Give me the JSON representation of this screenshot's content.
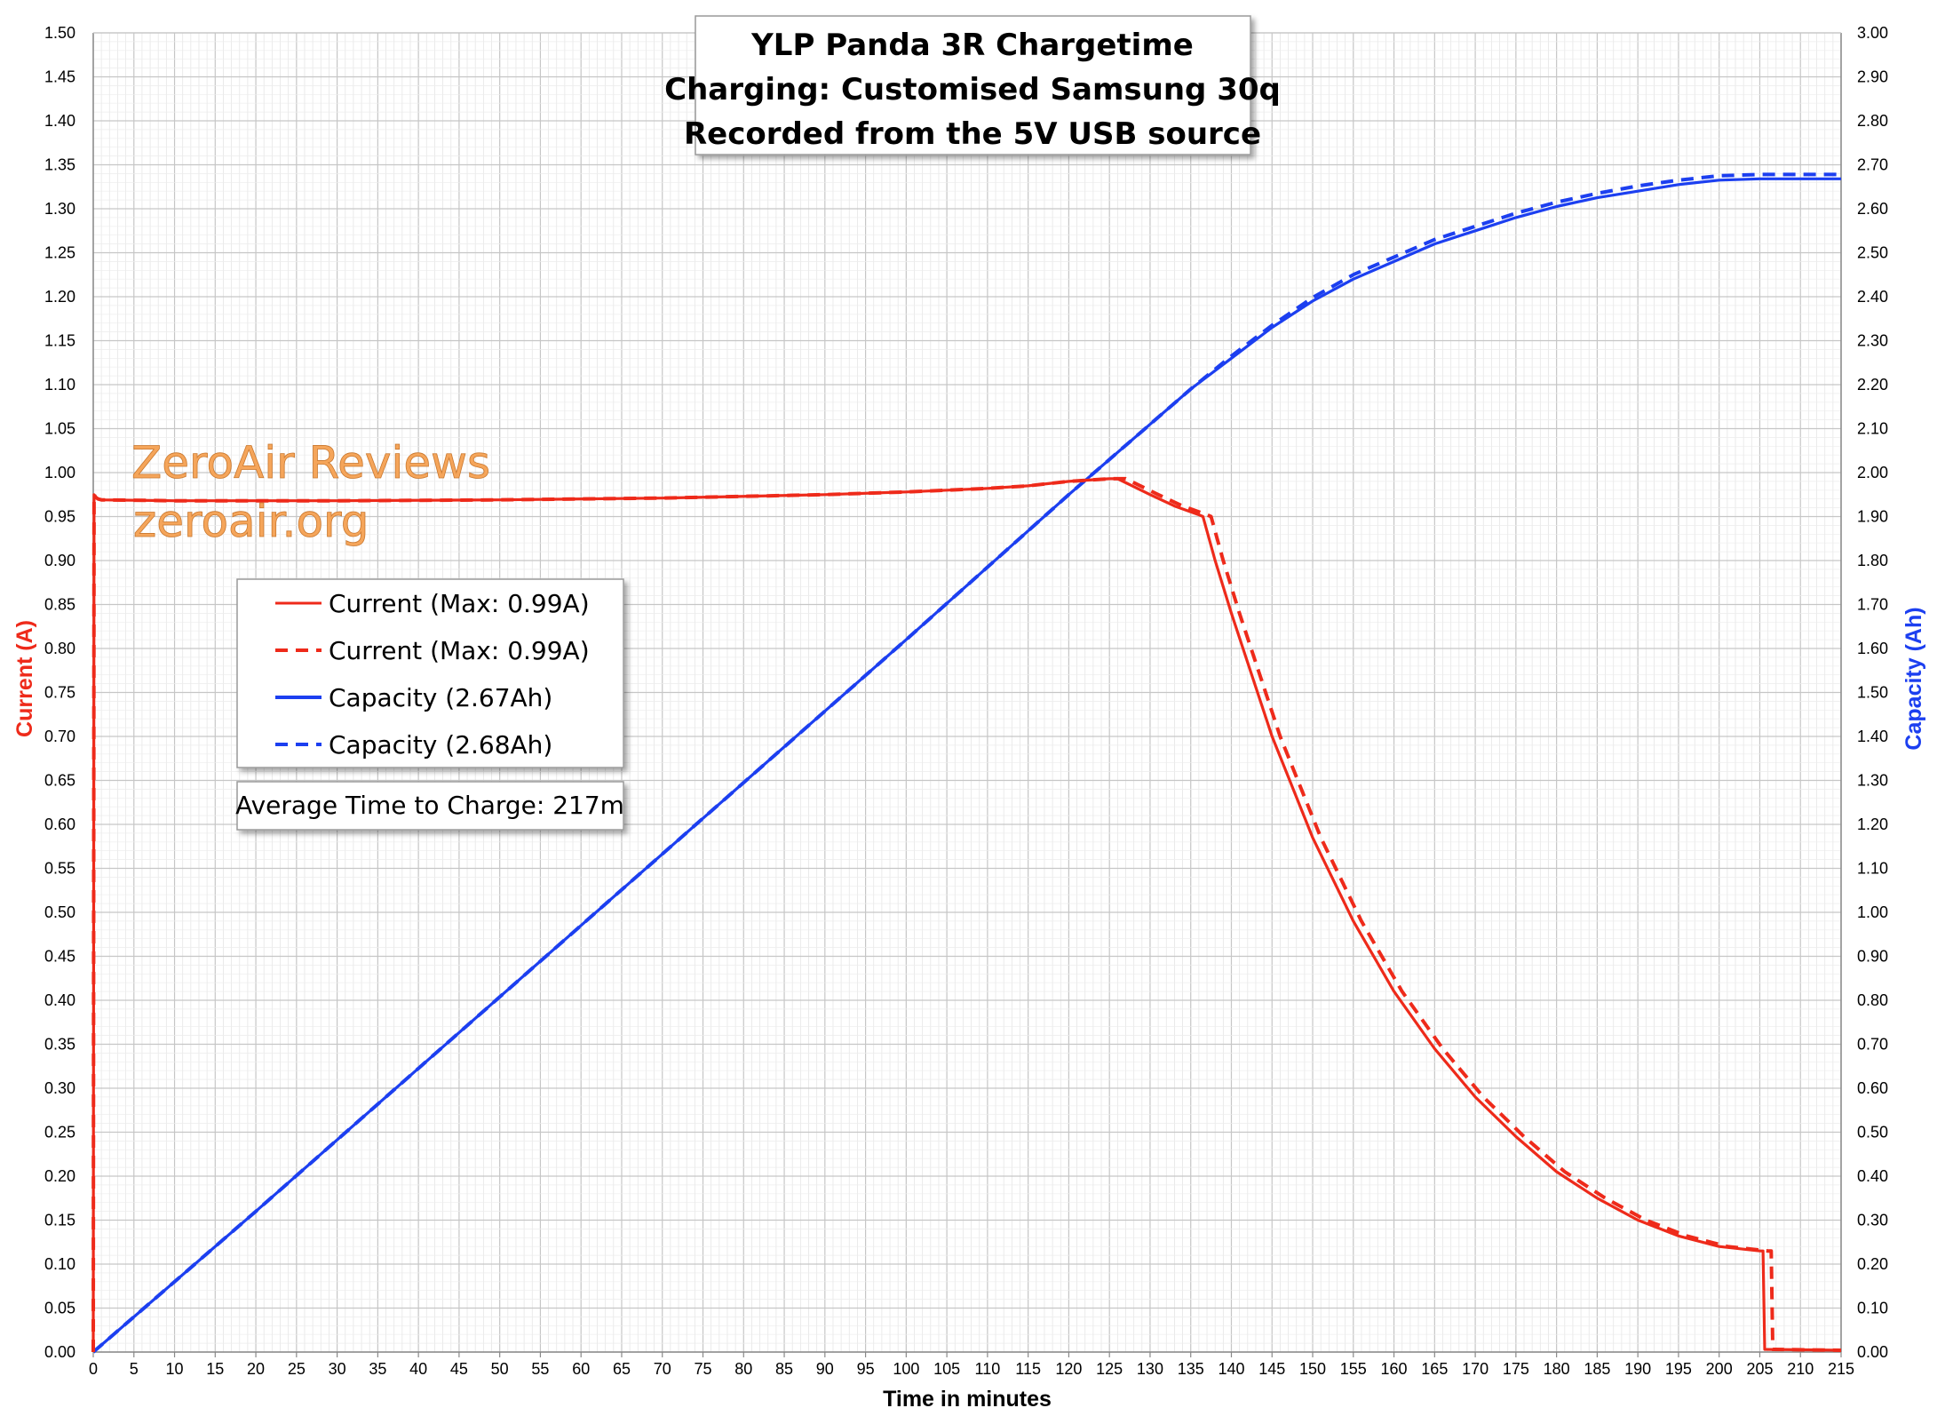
{
  "chart_data": {
    "type": "line",
    "title_lines": [
      "YLP Panda 3R Chargetime",
      "Charging: Customised Samsung 30q",
      "Recorded from the 5V USB source"
    ],
    "xlabel": "Time in minutes",
    "ylabel_left": "Current (A)",
    "ylabel_right": "Capacity (Ah)",
    "xlim": [
      0,
      215
    ],
    "ylim_left": [
      0,
      1.5
    ],
    "ylim_right": [
      0,
      3.0
    ],
    "x_ticks": [
      "0",
      "5",
      "10",
      "15",
      "20",
      "25",
      "30",
      "35",
      "40",
      "45",
      "50",
      "55",
      "60",
      "65",
      "70",
      "75",
      "80",
      "85",
      "90",
      "95",
      "100",
      "105",
      "110",
      "115",
      "120",
      "125",
      "130",
      "135",
      "140",
      "145",
      "150",
      "155",
      "160",
      "165",
      "170",
      "175",
      "180",
      "185",
      "190",
      "195",
      "200",
      "205",
      "210",
      "215"
    ],
    "y_left_ticks": [
      "0.00",
      "0.05",
      "0.10",
      "0.15",
      "0.20",
      "0.25",
      "0.30",
      "0.35",
      "0.40",
      "0.45",
      "0.50",
      "0.55",
      "0.60",
      "0.65",
      "0.70",
      "0.75",
      "0.80",
      "0.85",
      "0.90",
      "0.95",
      "1.00",
      "1.05",
      "1.10",
      "1.15",
      "1.20",
      "1.25",
      "1.30",
      "1.35",
      "1.40",
      "1.45",
      "1.50"
    ],
    "y_right_ticks": [
      "0.00",
      "0.10",
      "0.20",
      "0.30",
      "0.40",
      "0.50",
      "0.60",
      "0.70",
      "0.80",
      "0.90",
      "1.00",
      "1.10",
      "1.20",
      "1.30",
      "1.40",
      "1.50",
      "1.60",
      "1.70",
      "1.80",
      "1.90",
      "2.00",
      "2.10",
      "2.20",
      "2.30",
      "2.40",
      "2.50",
      "2.60",
      "2.70",
      "2.80",
      "2.90",
      "3.00"
    ],
    "grid": true,
    "series": [
      {
        "name": "Current (Max: 0.99A)",
        "axis": "left",
        "color": "#ee2a1a",
        "style": "solid",
        "x": [
          0,
          0.1,
          0.3,
          0.6,
          1,
          10,
          30,
          50,
          70,
          90,
          100,
          110,
          115,
          120,
          125,
          126,
          128,
          130,
          133,
          136,
          136.5,
          138,
          140,
          145,
          150,
          155,
          160,
          165,
          170,
          175,
          180,
          185,
          190,
          195,
          200,
          205,
          205.4,
          205.6,
          215
        ],
        "y": [
          0.0,
          0.975,
          0.972,
          0.97,
          0.969,
          0.968,
          0.968,
          0.969,
          0.971,
          0.975,
          0.978,
          0.982,
          0.985,
          0.99,
          0.993,
          0.993,
          0.984,
          0.975,
          0.962,
          0.952,
          0.95,
          0.9,
          0.84,
          0.7,
          0.585,
          0.49,
          0.41,
          0.345,
          0.29,
          0.245,
          0.205,
          0.175,
          0.15,
          0.132,
          0.12,
          0.115,
          0.115,
          0.003,
          0.002
        ]
      },
      {
        "name": "Current (Max: 0.99A)",
        "axis": "left",
        "color": "#ee2a1a",
        "style": "dashed",
        "x": [
          0,
          0.1,
          0.3,
          0.6,
          1,
          10,
          30,
          50,
          70,
          90,
          100,
          110,
          115,
          120,
          125,
          127,
          129,
          131,
          134,
          137,
          137.5,
          139,
          141,
          146,
          151,
          156,
          161,
          166,
          171,
          176,
          181,
          186,
          191,
          196,
          201,
          206,
          206.4,
          206.6,
          215
        ],
        "y": [
          0.0,
          0.975,
          0.972,
          0.97,
          0.969,
          0.968,
          0.968,
          0.969,
          0.971,
          0.975,
          0.978,
          0.982,
          0.985,
          0.99,
          0.993,
          0.993,
          0.984,
          0.975,
          0.962,
          0.952,
          0.95,
          0.9,
          0.84,
          0.7,
          0.585,
          0.49,
          0.41,
          0.345,
          0.29,
          0.245,
          0.205,
          0.175,
          0.15,
          0.132,
          0.12,
          0.115,
          0.115,
          0.003,
          0.002
        ]
      },
      {
        "name": "Capacity (2.67Ah)",
        "axis": "right",
        "color": "#1c3ff0",
        "style": "solid",
        "x": [
          0,
          20,
          40,
          60,
          80,
          100,
          120,
          130,
          135,
          140,
          145,
          150,
          155,
          160,
          165,
          170,
          175,
          180,
          185,
          190,
          195,
          200,
          205,
          215
        ],
        "y": [
          0.0,
          0.32,
          0.645,
          0.97,
          1.295,
          1.62,
          1.95,
          2.11,
          2.19,
          2.26,
          2.33,
          2.39,
          2.44,
          2.48,
          2.52,
          2.55,
          2.58,
          2.605,
          2.625,
          2.64,
          2.655,
          2.665,
          2.668,
          2.668
        ]
      },
      {
        "name": "Capacity (2.68Ah)",
        "axis": "right",
        "color": "#1c3ff0",
        "style": "dashed",
        "x": [
          0,
          20,
          40,
          60,
          80,
          100,
          120,
          130,
          135,
          140,
          145,
          150,
          155,
          160,
          165,
          170,
          175,
          180,
          185,
          190,
          195,
          200,
          205,
          215
        ],
        "y": [
          0.0,
          0.32,
          0.645,
          0.97,
          1.295,
          1.62,
          1.95,
          2.11,
          2.19,
          2.265,
          2.335,
          2.398,
          2.45,
          2.49,
          2.53,
          2.56,
          2.59,
          2.615,
          2.635,
          2.652,
          2.665,
          2.675,
          2.678,
          2.678
        ]
      }
    ],
    "legend": {
      "placement": "middle-left",
      "entries": [
        {
          "label": "Current (Max: 0.99A)",
          "color": "#ee2a1a",
          "style": "solid"
        },
        {
          "label": "Current (Max: 0.99A)",
          "color": "#ee2a1a",
          "style": "dashed"
        },
        {
          "label": "Capacity (2.67Ah)",
          "color": "#1c3ff0",
          "style": "solid"
        },
        {
          "label": "Capacity (2.68Ah)",
          "color": "#1c3ff0",
          "style": "dashed"
        }
      ]
    },
    "annotation": "Average Time to Charge: 217m",
    "watermark": [
      "ZeroAir Reviews",
      "zeroair.org"
    ],
    "colors": {
      "current": "#ee2a1a",
      "capacity": "#1c3ff0",
      "grid": "#d3d3d3",
      "axis": "#888888"
    }
  }
}
